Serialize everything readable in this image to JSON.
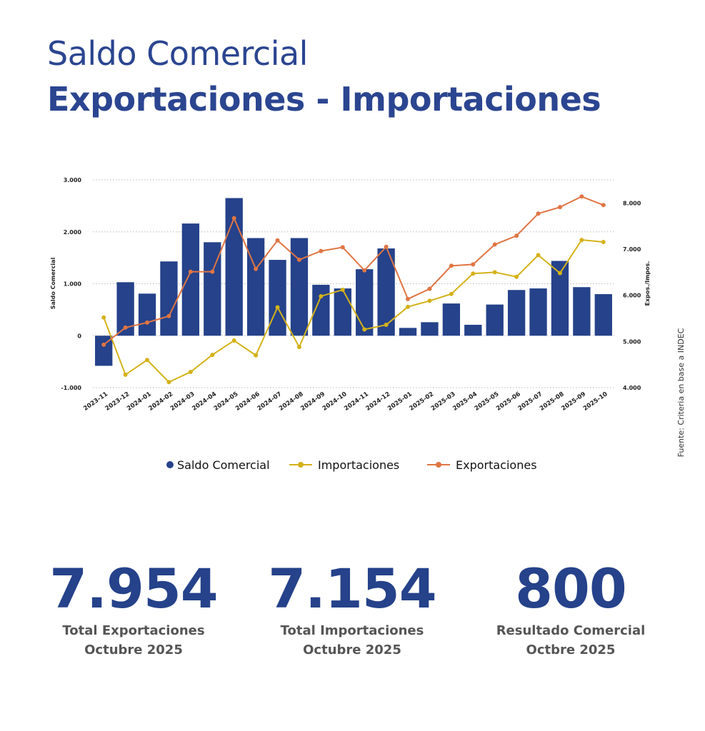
{
  "chart_data": {
    "type": "bar-line",
    "title": "Saldo Comercial",
    "subtitle": "Exportaciones - Importaciones",
    "y_label": "Saldo Comercial",
    "y2_label": "Expos./Impos.",
    "categories": [
      "2023-11",
      "2023-12",
      "2024-01",
      "2024-02",
      "2024-03",
      "2024-04",
      "2024-05",
      "2024-06",
      "2024-07",
      "2024-08",
      "2024-09",
      "2024-10",
      "2024-11",
      "2024-12",
      "2025-01",
      "2025-02",
      "2025-03",
      "2025-04",
      "2025-05",
      "2025-06",
      "2025-07",
      "2025-08",
      "2025-09",
      "2025-10"
    ],
    "series": [
      {
        "name": "Saldo Comercial",
        "type": "bar",
        "color": "#25428a",
        "values": [
          -580,
          1030,
          810,
          1430,
          2160,
          1800,
          2650,
          1880,
          1460,
          1880,
          980,
          910,
          1280,
          1680,
          150,
          260,
          620,
          210,
          600,
          880,
          910,
          1440,
          935,
          800
        ]
      },
      {
        "name": "Importaciones",
        "type": "line",
        "axis": "y2",
        "color": "#d4b21a",
        "values": [
          5520,
          4280,
          4600,
          4120,
          4340,
          4710,
          5020,
          4700,
          5740,
          4880,
          5980,
          6120,
          5260,
          5360,
          5750,
          5880,
          6030,
          6470,
          6500,
          6400,
          6870,
          6480,
          7200,
          7154
        ]
      },
      {
        "name": "Exportaciones",
        "type": "line",
        "axis": "y2",
        "color": "#e07543",
        "values": [
          4930,
          5300,
          5410,
          5550,
          6510,
          6510,
          7670,
          6570,
          7190,
          6770,
          6960,
          7040,
          6540,
          7050,
          5920,
          6140,
          6640,
          6670,
          7100,
          7290,
          7770,
          7910,
          8140,
          7954
        ]
      }
    ],
    "ylim": [
      -1000,
      3000
    ],
    "yticks": [
      {
        "value": -1000,
        "label": "-1.000"
      },
      0,
      {
        "value": 1000,
        "label": "1.000"
      },
      {
        "value": 2000,
        "label": "2.000"
      },
      {
        "value": 3000,
        "label": "3.000"
      }
    ],
    "y2lim": [
      4000,
      8500
    ],
    "y2ticks": [
      {
        "value": 4000,
        "label": "4.000"
      },
      {
        "value": 5000,
        "label": "5.000"
      },
      {
        "value": 6000,
        "label": "6.000"
      },
      {
        "value": 7000,
        "label": "7.000"
      },
      {
        "value": 8000,
        "label": "8.000"
      }
    ],
    "grid": true,
    "legend": "bottom"
  },
  "source": "Fuente: Criteria en base a INDEC",
  "stats": [
    {
      "value": "7.954",
      "label": "Total Exportaciones",
      "period": "Octubre 2025"
    },
    {
      "value": "7.154",
      "label": "Total Importaciones",
      "period": "Octubre 2025"
    },
    {
      "value": "800",
      "label": "Resultado Comercial",
      "period": "Octbre 2025"
    }
  ]
}
